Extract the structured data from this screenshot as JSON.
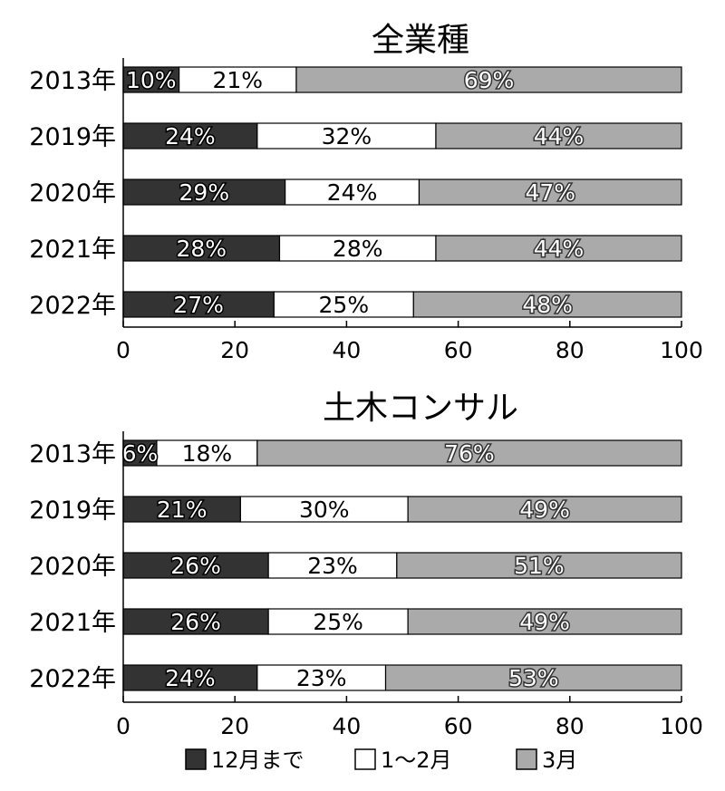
{
  "chart_data": [
    {
      "type": "bar",
      "orientation": "horizontal",
      "stacked": true,
      "title": "全業種",
      "categories": [
        "2013年",
        "2019年",
        "2020年",
        "2021年",
        "2022年"
      ],
      "series": [
        {
          "name": "12月まで",
          "color": "#333333",
          "values": [
            10,
            24,
            29,
            28,
            27
          ],
          "labels": [
            "10%",
            "24%",
            "29%",
            "28%",
            "27%"
          ]
        },
        {
          "name": "1～2月",
          "color": "#ffffff",
          "values": [
            21,
            32,
            24,
            28,
            25
          ],
          "labels": [
            "21%",
            "32%",
            "24%",
            "28%",
            "25%"
          ]
        },
        {
          "name": "3月",
          "color": "#aaaaaa",
          "values": [
            69,
            44,
            47,
            44,
            48
          ],
          "labels": [
            "69%",
            "44%",
            "47%",
            "44%",
            "48%"
          ]
        }
      ],
      "xlim": [
        0,
        100
      ],
      "xticks": [
        "0",
        "20",
        "40",
        "60",
        "80",
        "100"
      ],
      "grid": false
    },
    {
      "type": "bar",
      "orientation": "horizontal",
      "stacked": true,
      "title": "土木コンサル",
      "categories": [
        "2013年",
        "2019年",
        "2020年",
        "2021年",
        "2022年"
      ],
      "series": [
        {
          "name": "12月まで",
          "color": "#333333",
          "values": [
            6,
            21,
            26,
            26,
            24
          ],
          "labels": [
            "6%",
            "21%",
            "26%",
            "26%",
            "24%"
          ]
        },
        {
          "name": "1～2月",
          "color": "#ffffff",
          "values": [
            18,
            30,
            23,
            25,
            23
          ],
          "labels": [
            "18%",
            "30%",
            "23%",
            "25%",
            "23%"
          ]
        },
        {
          "name": "3月",
          "color": "#aaaaaa",
          "values": [
            76,
            49,
            51,
            49,
            53
          ],
          "labels": [
            "76%",
            "49%",
            "51%",
            "49%",
            "53%"
          ]
        }
      ],
      "xlim": [
        0,
        100
      ],
      "xticks": [
        "0",
        "20",
        "40",
        "60",
        "80",
        "100"
      ],
      "grid": false
    }
  ],
  "legend": {
    "placement": "bottom",
    "items": [
      {
        "label": "12月まで",
        "color": "#333333"
      },
      {
        "label": "1～2月",
        "color": "#ffffff"
      },
      {
        "label": "3月",
        "color": "#aaaaaa"
      }
    ]
  }
}
